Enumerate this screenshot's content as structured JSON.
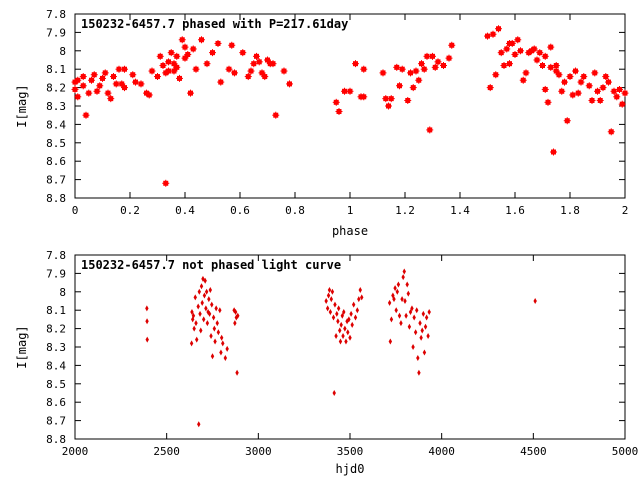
{
  "chart_data": [
    {
      "type": "scatter",
      "title": "150232-6457.7 phased with P=217.61day",
      "xlabel": "phase",
      "ylabel": "I[mag]",
      "xlim": [
        0,
        2
      ],
      "ylim": [
        8.8,
        7.8
      ],
      "y_inverted": true,
      "x_ticks": [
        "0",
        "0.2",
        "0.4",
        "0.6",
        "0.8",
        "1",
        "1.2",
        "1.4",
        "1.6",
        "1.8",
        "2"
      ],
      "y_ticks": [
        "7.8",
        "7.9",
        "8",
        "8.1",
        "8.2",
        "8.3",
        "8.4",
        "8.5",
        "8.6",
        "8.7",
        "8.8"
      ],
      "grid": false,
      "marker_color": "#ff0000",
      "points": [
        [
          0.0,
          8.17
        ],
        [
          0.0,
          8.21
        ],
        [
          0.01,
          8.16
        ],
        [
          0.01,
          8.25
        ],
        [
          0.03,
          8.14
        ],
        [
          0.03,
          8.19
        ],
        [
          0.04,
          8.35
        ],
        [
          0.05,
          8.23
        ],
        [
          0.06,
          8.16
        ],
        [
          0.07,
          8.13
        ],
        [
          0.08,
          8.22
        ],
        [
          0.09,
          8.19
        ],
        [
          0.1,
          8.15
        ],
        [
          0.11,
          8.12
        ],
        [
          0.12,
          8.23
        ],
        [
          0.13,
          8.26
        ],
        [
          0.14,
          8.14
        ],
        [
          0.15,
          8.18
        ],
        [
          0.16,
          8.1
        ],
        [
          0.17,
          8.18
        ],
        [
          0.18,
          8.1
        ],
        [
          0.18,
          8.2
        ],
        [
          0.21,
          8.13
        ],
        [
          0.22,
          8.17
        ],
        [
          0.24,
          8.18
        ],
        [
          0.26,
          8.23
        ],
        [
          0.27,
          8.24
        ],
        [
          0.28,
          8.11
        ],
        [
          0.3,
          8.14
        ],
        [
          0.31,
          8.03
        ],
        [
          0.32,
          8.08
        ],
        [
          0.33,
          8.72
        ],
        [
          0.33,
          8.12
        ],
        [
          0.34,
          8.06
        ],
        [
          0.34,
          8.11
        ],
        [
          0.35,
          8.01
        ],
        [
          0.36,
          8.07
        ],
        [
          0.36,
          8.11
        ],
        [
          0.37,
          8.03
        ],
        [
          0.37,
          8.09
        ],
        [
          0.38,
          8.15
        ],
        [
          0.39,
          7.94
        ],
        [
          0.4,
          8.04
        ],
        [
          0.4,
          7.98
        ],
        [
          0.41,
          8.02
        ],
        [
          0.42,
          8.23
        ],
        [
          0.43,
          7.99
        ],
        [
          0.44,
          8.1
        ],
        [
          0.46,
          7.94
        ],
        [
          0.48,
          8.07
        ],
        [
          0.5,
          8.01
        ],
        [
          0.52,
          7.96
        ],
        [
          0.53,
          8.17
        ],
        [
          0.56,
          8.1
        ],
        [
          0.57,
          7.97
        ],
        [
          0.58,
          8.12
        ],
        [
          0.61,
          8.01
        ],
        [
          0.63,
          8.14
        ],
        [
          0.64,
          8.11
        ],
        [
          0.65,
          8.07
        ],
        [
          0.66,
          8.03
        ],
        [
          0.67,
          8.06
        ],
        [
          0.68,
          8.12
        ],
        [
          0.69,
          8.14
        ],
        [
          0.7,
          8.05
        ],
        [
          0.71,
          8.07
        ],
        [
          0.72,
          8.07
        ],
        [
          0.73,
          8.35
        ],
        [
          0.76,
          8.11
        ],
        [
          0.78,
          8.18
        ],
        [
          0.95,
          8.28
        ],
        [
          0.96,
          8.33
        ],
        [
          0.98,
          8.22
        ],
        [
          1.0,
          8.22
        ],
        [
          1.02,
          8.07
        ],
        [
          1.04,
          8.25
        ],
        [
          1.05,
          8.1
        ],
        [
          1.05,
          8.25
        ],
        [
          1.12,
          8.12
        ],
        [
          1.13,
          8.26
        ],
        [
          1.14,
          8.3
        ],
        [
          1.15,
          8.26
        ],
        [
          1.17,
          8.09
        ],
        [
          1.18,
          8.19
        ],
        [
          1.19,
          8.1
        ],
        [
          1.21,
          8.27
        ],
        [
          1.22,
          8.12
        ],
        [
          1.23,
          8.2
        ],
        [
          1.24,
          8.11
        ],
        [
          1.25,
          8.16
        ],
        [
          1.26,
          8.07
        ],
        [
          1.27,
          8.1
        ],
        [
          1.28,
          8.03
        ],
        [
          1.29,
          8.43
        ],
        [
          1.3,
          8.03
        ],
        [
          1.31,
          8.09
        ],
        [
          1.32,
          8.06
        ],
        [
          1.34,
          8.08
        ],
        [
          1.36,
          8.04
        ],
        [
          1.37,
          7.97
        ],
        [
          1.5,
          7.92
        ],
        [
          1.51,
          8.2
        ],
        [
          1.52,
          7.91
        ],
        [
          1.53,
          8.13
        ],
        [
          1.54,
          7.88
        ],
        [
          1.55,
          8.01
        ],
        [
          1.56,
          8.08
        ],
        [
          1.57,
          7.99
        ],
        [
          1.58,
          8.07
        ],
        [
          1.58,
          7.96
        ],
        [
          1.59,
          7.96
        ],
        [
          1.6,
          8.02
        ],
        [
          1.61,
          7.94
        ],
        [
          1.62,
          8.0
        ],
        [
          1.63,
          8.16
        ],
        [
          1.64,
          8.12
        ],
        [
          1.65,
          8.01
        ],
        [
          1.66,
          8.0
        ],
        [
          1.67,
          7.99
        ],
        [
          1.68,
          8.05
        ],
        [
          1.69,
          8.01
        ],
        [
          1.7,
          8.08
        ],
        [
          1.71,
          8.03
        ],
        [
          1.71,
          8.21
        ],
        [
          1.72,
          8.28
        ],
        [
          1.73,
          8.09
        ],
        [
          1.73,
          7.98
        ],
        [
          1.74,
          8.55
        ],
        [
          1.75,
          8.08
        ],
        [
          1.75,
          8.11
        ],
        [
          1.76,
          8.13
        ],
        [
          1.77,
          8.22
        ],
        [
          1.78,
          8.17
        ],
        [
          1.79,
          8.38
        ],
        [
          1.8,
          8.14
        ],
        [
          1.81,
          8.24
        ],
        [
          1.82,
          8.11
        ],
        [
          1.83,
          8.23
        ],
        [
          1.84,
          8.17
        ],
        [
          1.85,
          8.14
        ],
        [
          1.87,
          8.19
        ],
        [
          1.88,
          8.27
        ],
        [
          1.89,
          8.12
        ],
        [
          1.9,
          8.22
        ],
        [
          1.91,
          8.27
        ],
        [
          1.92,
          8.2
        ],
        [
          1.93,
          8.14
        ],
        [
          1.94,
          8.17
        ],
        [
          1.95,
          8.44
        ],
        [
          1.96,
          8.22
        ],
        [
          1.97,
          8.25
        ],
        [
          1.98,
          8.21
        ],
        [
          1.99,
          8.29
        ],
        [
          2.0,
          8.23
        ]
      ]
    },
    {
      "type": "scatter",
      "title": "150232-6457.7 not phased light curve",
      "xlabel": "hjd0",
      "ylabel": "I[mag]",
      "xlim": [
        2000,
        5000
      ],
      "ylim": [
        8.8,
        7.8
      ],
      "y_inverted": true,
      "x_ticks": [
        "2000",
        "2500",
        "3000",
        "3500",
        "4000",
        "4500",
        "5000"
      ],
      "y_ticks": [
        "7.8",
        "7.9",
        "8",
        "8.1",
        "8.2",
        "8.3",
        "8.4",
        "8.5",
        "8.6",
        "8.7",
        "8.8"
      ],
      "grid": false,
      "marker_color": "#dd0000",
      "points": [
        [
          2392,
          8.09
        ],
        [
          2393,
          8.16
        ],
        [
          2394,
          8.26
        ],
        [
          2636,
          8.28
        ],
        [
          2638,
          8.11
        ],
        [
          2642,
          8.15
        ],
        [
          2646,
          8.13
        ],
        [
          2650,
          8.2
        ],
        [
          2656,
          8.03
        ],
        [
          2660,
          8.17
        ],
        [
          2664,
          8.26
        ],
        [
          2672,
          8.08
        ],
        [
          2675,
          8.72
        ],
        [
          2678,
          8.0
        ],
        [
          2682,
          8.12
        ],
        [
          2686,
          8.21
        ],
        [
          2690,
          7.97
        ],
        [
          2694,
          8.06
        ],
        [
          2698,
          7.93
        ],
        [
          2702,
          8.15
        ],
        [
          2706,
          8.02
        ],
        [
          2710,
          7.94
        ],
        [
          2714,
          8.09
        ],
        [
          2718,
          8.0
        ],
        [
          2722,
          8.17
        ],
        [
          2726,
          8.11
        ],
        [
          2730,
          8.04
        ],
        [
          2734,
          8.12
        ],
        [
          2738,
          7.99
        ],
        [
          2742,
          8.24
        ],
        [
          2746,
          8.07
        ],
        [
          2750,
          8.35
        ],
        [
          2756,
          8.14
        ],
        [
          2760,
          8.2
        ],
        [
          2764,
          8.27
        ],
        [
          2770,
          8.09
        ],
        [
          2776,
          8.17
        ],
        [
          2782,
          8.22
        ],
        [
          2790,
          8.1
        ],
        [
          2796,
          8.33
        ],
        [
          2800,
          8.25
        ],
        [
          2806,
          8.28
        ],
        [
          2820,
          8.36
        ],
        [
          2830,
          8.31
        ],
        [
          2868,
          8.1
        ],
        [
          2872,
          8.17
        ],
        [
          2876,
          8.11
        ],
        [
          2880,
          8.14
        ],
        [
          2884,
          8.44
        ],
        [
          2888,
          8.13
        ],
        [
          3370,
          8.05
        ],
        [
          3378,
          8.09
        ],
        [
          3383,
          8.02
        ],
        [
          3388,
          7.99
        ],
        [
          3393,
          8.11
        ],
        [
          3398,
          8.04
        ],
        [
          3404,
          8.0
        ],
        [
          3410,
          8.14
        ],
        [
          3414,
          8.55
        ],
        [
          3418,
          8.07
        ],
        [
          3424,
          8.24
        ],
        [
          3428,
          8.12
        ],
        [
          3434,
          8.16
        ],
        [
          3438,
          8.09
        ],
        [
          3444,
          8.21
        ],
        [
          3448,
          8.27
        ],
        [
          3452,
          8.18
        ],
        [
          3458,
          8.13
        ],
        [
          3462,
          8.24
        ],
        [
          3466,
          8.11
        ],
        [
          3472,
          8.2
        ],
        [
          3478,
          8.27
        ],
        [
          3484,
          8.16
        ],
        [
          3488,
          8.22
        ],
        [
          3494,
          8.15
        ],
        [
          3500,
          8.25
        ],
        [
          3506,
          8.12
        ],
        [
          3512,
          8.18
        ],
        [
          3520,
          8.07
        ],
        [
          3530,
          8.14
        ],
        [
          3540,
          8.1
        ],
        [
          3548,
          8.04
        ],
        [
          3556,
          7.99
        ],
        [
          3564,
          8.03
        ],
        [
          3716,
          8.06
        ],
        [
          3720,
          8.27
        ],
        [
          3726,
          8.15
        ],
        [
          3734,
          8.02
        ],
        [
          3740,
          8.04
        ],
        [
          3746,
          7.98
        ],
        [
          3752,
          8.1
        ],
        [
          3758,
          8.0
        ],
        [
          3764,
          7.96
        ],
        [
          3770,
          8.13
        ],
        [
          3778,
          8.17
        ],
        [
          3784,
          8.04
        ],
        [
          3790,
          7.92
        ],
        [
          3796,
          7.89
        ],
        [
          3800,
          8.05
        ],
        [
          3806,
          8.13
        ],
        [
          3812,
          7.96
        ],
        [
          3818,
          8.01
        ],
        [
          3824,
          8.19
        ],
        [
          3830,
          8.11
        ],
        [
          3838,
          8.09
        ],
        [
          3844,
          8.3
        ],
        [
          3850,
          8.14
        ],
        [
          3858,
          8.22
        ],
        [
          3864,
          8.1
        ],
        [
          3870,
          8.36
        ],
        [
          3876,
          8.44
        ],
        [
          3882,
          8.17
        ],
        [
          3888,
          8.25
        ],
        [
          3894,
          8.21
        ],
        [
          3900,
          8.12
        ],
        [
          3906,
          8.33
        ],
        [
          3912,
          8.19
        ],
        [
          3918,
          8.14
        ],
        [
          3926,
          8.24
        ],
        [
          3932,
          8.11
        ],
        [
          4510,
          8.05
        ]
      ]
    }
  ]
}
